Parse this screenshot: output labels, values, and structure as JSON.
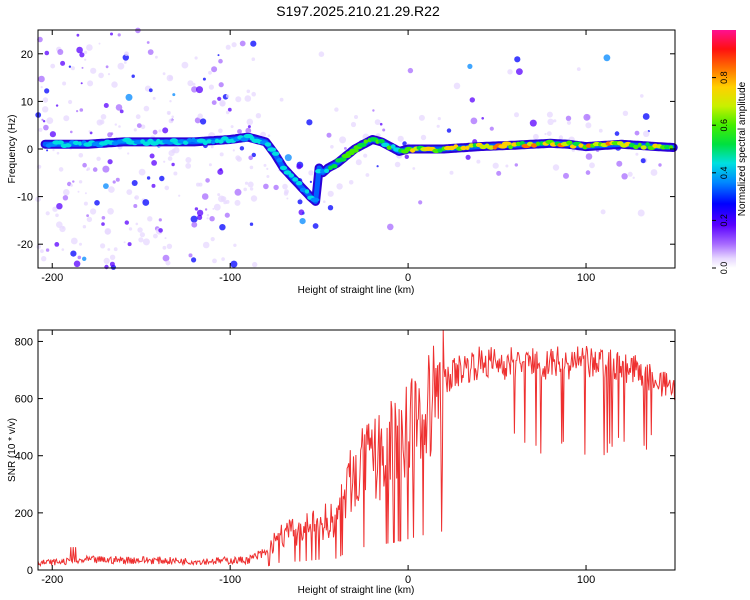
{
  "title": "S197.2025.210.21.29.R22",
  "chart_data": [
    {
      "type": "heatmap",
      "xlabel": "Height of straight line (km)",
      "ylabel": "Frequency (Hz)",
      "xlim": [
        -208,
        150
      ],
      "ylim": [
        -25,
        25
      ],
      "xticks": [
        -200,
        -100,
        0,
        100
      ],
      "yticks": [
        -20,
        -10,
        0,
        10,
        20
      ],
      "colorbar": {
        "label": "Normalized spectral amplitude",
        "range": [
          0,
          1
        ],
        "ticks": [
          "0.0",
          "0.2",
          "0.4",
          "0.6",
          "0.8"
        ],
        "tick_values": [
          0,
          0.2,
          0.4,
          0.6,
          0.8
        ]
      },
      "ridge": {
        "x": [
          -200,
          -180,
          -160,
          -140,
          -120,
          -100,
          -90,
          -80,
          -75,
          -70,
          -65,
          -60,
          -55,
          -52,
          -50,
          -48,
          -45,
          -40,
          -35,
          -30,
          -25,
          -20,
          -15,
          -10,
          -5,
          0,
          20,
          40,
          60,
          80,
          90,
          100,
          120,
          140,
          150
        ],
        "y": [
          1,
          1,
          1.5,
          1.5,
          1.5,
          2,
          2.5,
          1.5,
          -1,
          -4,
          -6,
          -8,
          -10,
          -11,
          -4,
          -5,
          -4,
          -3,
          -1.5,
          0,
          1,
          2,
          1.5,
          0.5,
          -0.5,
          0,
          0,
          0.5,
          0.8,
          1.2,
          1,
          0.5,
          1,
          0.5,
          0.3
        ]
      }
    },
    {
      "type": "line",
      "xlabel": "Height of straight line (km)",
      "ylabel": "SNR (10 * v/v)",
      "xlim": [
        -208,
        150
      ],
      "ylim": [
        0,
        840
      ],
      "xticks": [
        -200,
        -100,
        0,
        100
      ],
      "yticks": [
        0,
        200,
        400,
        600,
        800
      ],
      "color": "#ee3030",
      "envelope": {
        "x": [
          -208,
          -190,
          -180,
          -150,
          -120,
          -90,
          -80,
          -75,
          -70,
          -60,
          -50,
          -40,
          -35,
          -30,
          -20,
          -10,
          0,
          10,
          20,
          30,
          40,
          60,
          80,
          100,
          120,
          140,
          150
        ],
        "y": [
          25,
          30,
          35,
          35,
          30,
          35,
          60,
          110,
          140,
          150,
          180,
          200,
          300,
          380,
          420,
          470,
          540,
          620,
          680,
          720,
          740,
          740,
          740,
          740,
          730,
          680,
          640
        ]
      }
    }
  ]
}
